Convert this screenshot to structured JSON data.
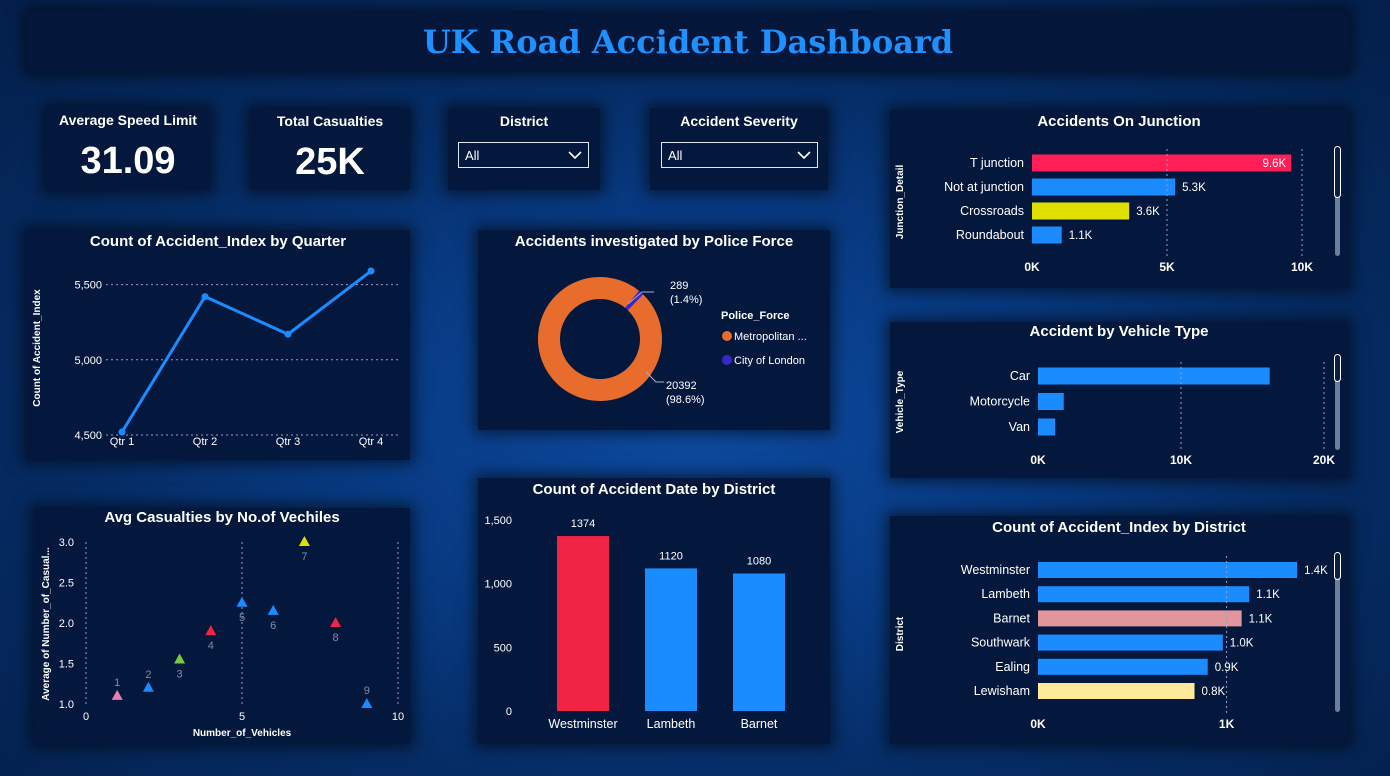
{
  "dashboard": {
    "title": "UK Road Accident Dashboard"
  },
  "kpis": {
    "avg_speed": {
      "label": "Average Speed Limit",
      "value": "31.09"
    },
    "total_casualties": {
      "label": "Total Casualties",
      "value": "25K"
    }
  },
  "filters": {
    "district": {
      "label": "District",
      "value": "All"
    },
    "severity": {
      "label": "Accident Severity",
      "value": "All"
    }
  },
  "colors": {
    "blue": "#1a8cff",
    "red": "#f02444",
    "yellow": "#e0e000",
    "pink_red": "#ff1e56",
    "salmon": "#e0969a",
    "cream": "#ffe99a",
    "orange": "#e86c2c",
    "navy": "#3b26c8"
  },
  "chart_data": [
    {
      "id": "quarter",
      "type": "line",
      "title": "Count of Accident_Index by Quarter",
      "ylabel": "Count of Accident_Index",
      "categories": [
        "Qtr 1",
        "Qtr 2",
        "Qtr 3",
        "Qtr 4"
      ],
      "values": [
        4520,
        5420,
        5170,
        5590
      ],
      "ylim": [
        4500,
        5650
      ],
      "yticks": [
        "4,500",
        "5,000",
        "5,500"
      ],
      "ytick_values": [
        4500,
        5000,
        5500
      ]
    },
    {
      "id": "police",
      "type": "pie",
      "title": "Accidents investigated by Police Force",
      "legend_title": "Police_Force",
      "slices": [
        {
          "name": "Metropolitan ...",
          "value": 20392,
          "label": "20392",
          "pct": "(98.6%)",
          "color": "#e86c2c"
        },
        {
          "name": "City of London",
          "value": 289,
          "label": "289",
          "pct": "(1.4%)",
          "color": "#3b26c8"
        }
      ]
    },
    {
      "id": "junction",
      "type": "bar",
      "title": "Accidents On Junction",
      "ylabel": "Junction_Detail",
      "categories": [
        "T junction",
        "Not at junction",
        "Crossroads",
        "Roundabout"
      ],
      "values": [
        9600,
        5300,
        3600,
        1100
      ],
      "labels": [
        "9.6K",
        "5.3K",
        "3.6K",
        "1.1K"
      ],
      "colors": [
        "#ff1e56",
        "#1a8cff",
        "#e0e000",
        "#1a8cff"
      ],
      "xlim": [
        0,
        10000
      ],
      "xticks": [
        "0K",
        "5K",
        "10K"
      ]
    },
    {
      "id": "vehicle",
      "type": "bar",
      "title": "Accident by Vehicle Type",
      "ylabel": "Vehicle_Type",
      "categories": [
        "Car",
        "Motorcycle",
        "Van"
      ],
      "values": [
        16200,
        1800,
        1200
      ],
      "xlim": [
        0,
        20000
      ],
      "xticks": [
        "0K",
        "10K",
        "20K"
      ]
    },
    {
      "id": "scatter",
      "type": "scatter",
      "title": "Avg Casualties by No.of Vechiles",
      "xlabel": "Number_of_Vehicles",
      "ylabel": "Average of Number_of_Casual...",
      "xlim": [
        0,
        10
      ],
      "ylim": [
        1.0,
        3.0
      ],
      "xticks": [
        "0",
        "5",
        "10"
      ],
      "yticks": [
        "1.0",
        "1.5",
        "2.0",
        "2.5",
        "3.0"
      ],
      "points": [
        {
          "x": 1,
          "y": 1.1,
          "label": "1",
          "color": "#e67fb0"
        },
        {
          "x": 2,
          "y": 1.2,
          "label": "2",
          "color": "#1a8cff"
        },
        {
          "x": 3,
          "y": 1.55,
          "label": "3",
          "color": "#7ac943"
        },
        {
          "x": 4,
          "y": 1.9,
          "label": "4",
          "color": "#f02444"
        },
        {
          "x": 5,
          "y": 2.25,
          "label": "5",
          "color": "#1a8cff"
        },
        {
          "x": 6,
          "y": 2.15,
          "label": "6",
          "color": "#1a8cff"
        },
        {
          "x": 7,
          "y": 3.0,
          "label": "7",
          "color": "#e0e000"
        },
        {
          "x": 8,
          "y": 2.0,
          "label": "8",
          "color": "#f02444"
        },
        {
          "x": 9,
          "y": 1.0,
          "label": "9",
          "color": "#1a8cff"
        }
      ]
    },
    {
      "id": "date_district",
      "type": "bar",
      "title": "Count of Accident Date by District",
      "categories": [
        "Westminster",
        "Lambeth",
        "Barnet"
      ],
      "values": [
        1374,
        1120,
        1080
      ],
      "labels": [
        "1374",
        "1120",
        "1080"
      ],
      "colors": [
        "#f02444",
        "#1a8cff",
        "#1a8cff"
      ],
      "ylim": [
        0,
        1500
      ],
      "yticks": [
        "0",
        "500",
        "1,000",
        "1,500"
      ]
    },
    {
      "id": "index_district",
      "type": "bar",
      "title": "Count of Accident_Index by District",
      "ylabel": "District",
      "categories": [
        "Westminster",
        "Lambeth",
        "Barnet",
        "Southwark",
        "Ealing",
        "Lewisham"
      ],
      "values": [
        1374,
        1120,
        1080,
        980,
        900,
        830
      ],
      "labels": [
        "1.4K",
        "1.1K",
        "1.1K",
        "1.0K",
        "0.9K",
        "0.8K"
      ],
      "colors": [
        "#1a8cff",
        "#1a8cff",
        "#e0969a",
        "#1a8cff",
        "#1a8cff",
        "#ffe99a"
      ],
      "xlim": [
        0,
        1400
      ],
      "xticks": [
        "0K",
        "1K"
      ]
    }
  ]
}
